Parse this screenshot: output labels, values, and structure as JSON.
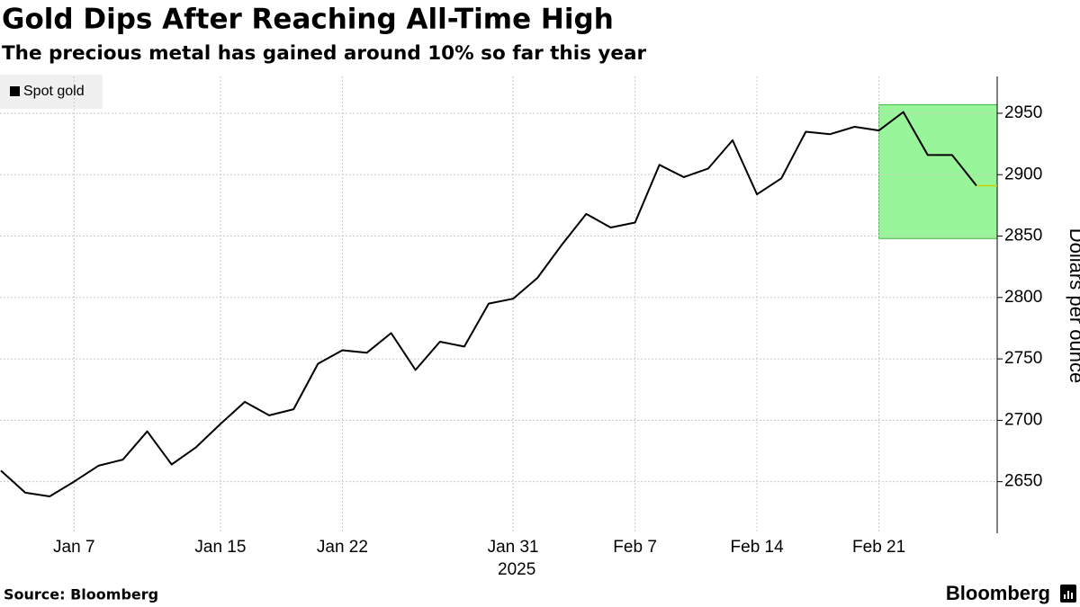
{
  "chart_data": {
    "type": "line",
    "title": "Gold Dips After Reaching All-Time High",
    "subtitle": "The precious metal has gained around 10% so far this year",
    "categories": [
      null,
      null,
      null,
      "Jan 7",
      null,
      null,
      null,
      null,
      null,
      "Jan 15",
      null,
      null,
      null,
      null,
      "Jan 22",
      null,
      null,
      null,
      null,
      null,
      null,
      "Jan 31",
      null,
      null,
      null,
      null,
      "Feb 7",
      null,
      null,
      null,
      null,
      "Feb 14",
      null,
      null,
      null,
      null,
      "Feb 21",
      null,
      null,
      null,
      null
    ],
    "x_sublabel": "2025",
    "series": [
      {
        "name": "Spot gold",
        "color": "#000000",
        "values": [
          2659,
          2641,
          2638,
          2650,
          2663,
          2668,
          2691,
          2664,
          2678,
          2697,
          2715,
          2704,
          2709,
          2746,
          2757,
          2755,
          2771,
          2741,
          2764,
          2760,
          2795,
          2799,
          2816,
          2843,
          2868,
          2857,
          2861,
          2908,
          2898,
          2905,
          2928,
          2884,
          2897,
          2935,
          2933,
          2939,
          2936,
          2951,
          2916,
          2916,
          2891
        ]
      }
    ],
    "ylim": [
      2608,
      2980
    ],
    "yticks": [
      2650,
      2700,
      2750,
      2800,
      2850,
      2900,
      2950
    ],
    "y_label": "Dollars per ounce",
    "grid": true,
    "legend": "top-left",
    "highlight": {
      "x_from": "Feb 21",
      "ymin": 2848,
      "ymax": 2957,
      "color": "#99f599"
    },
    "source": "Source: Bloomberg",
    "brand": "Bloomberg"
  }
}
